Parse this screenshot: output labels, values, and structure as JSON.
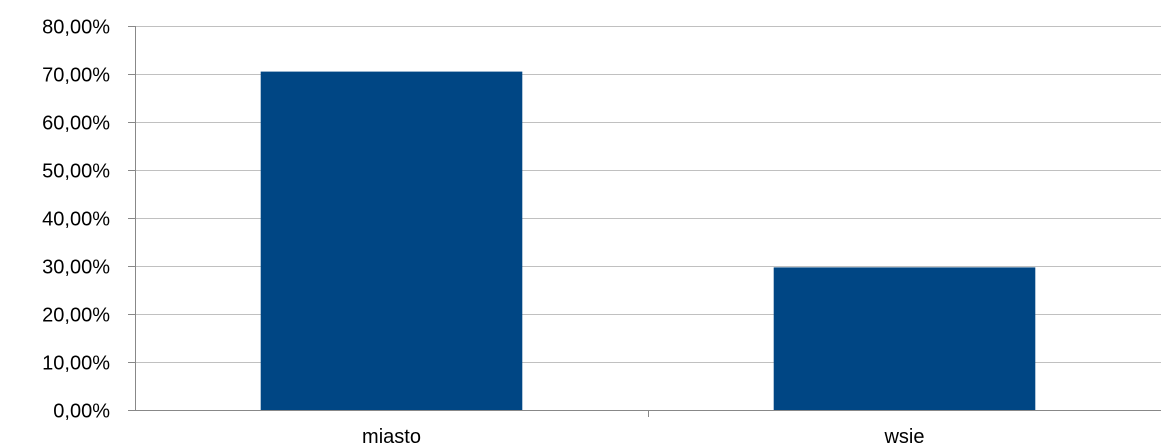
{
  "chart_data": {
    "type": "bar",
    "categories": [
      "miasto",
      "wsie"
    ],
    "values": [
      70.5,
      29.7
    ],
    "ylim": [
      0,
      80
    ],
    "yticks": [
      0,
      10,
      20,
      30,
      40,
      50,
      60,
      70,
      80
    ],
    "ytick_labels": [
      "0,00%",
      "10,00%",
      "20,00%",
      "30,00%",
      "40,00%",
      "50,00%",
      "60,00%",
      "70,00%",
      "80,00%"
    ],
    "grid": true,
    "legend": false,
    "colors": {
      "bar": "#004684",
      "grid": "#c0c0c0",
      "axis": "#888888"
    }
  }
}
